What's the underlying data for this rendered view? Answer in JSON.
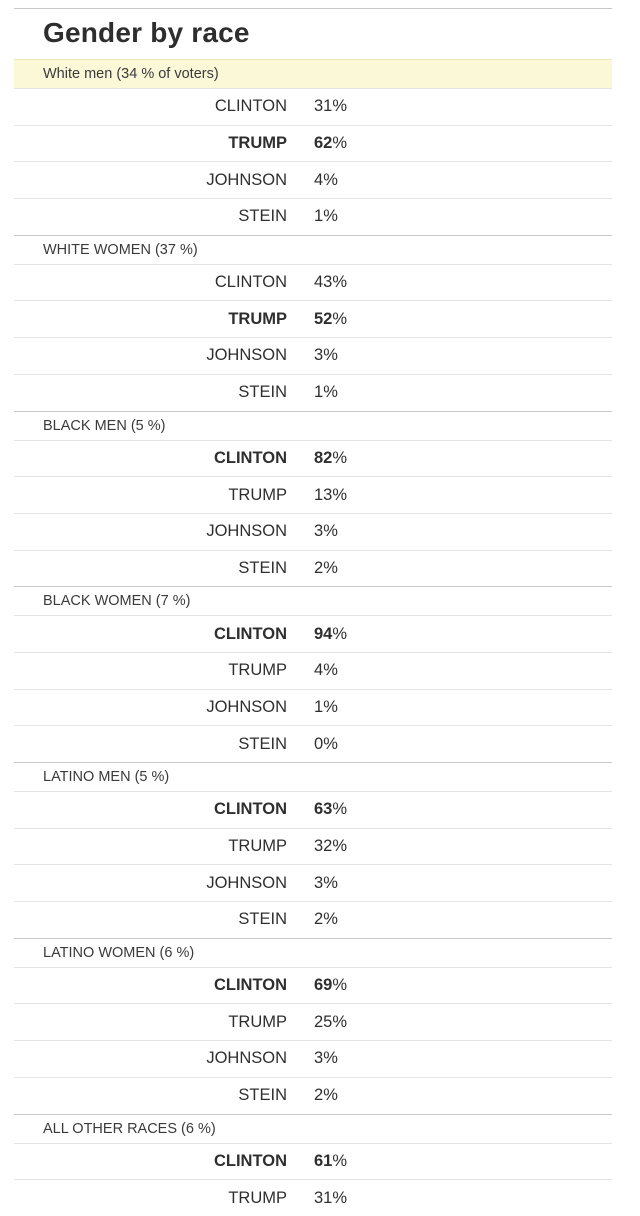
{
  "title": "Gender by race",
  "chart_data": {
    "type": "table",
    "title": "Gender by race",
    "groups": [
      {
        "label": "White men (34 % of voters)",
        "highlight": true,
        "leader": "TRUMP",
        "rows": [
          {
            "candidate": "CLINTON",
            "value": "31",
            "unit": "%"
          },
          {
            "candidate": "TRUMP",
            "value": "62",
            "unit": "%"
          },
          {
            "candidate": "JOHNSON",
            "value": "4",
            "unit": "%"
          },
          {
            "candidate": "STEIN",
            "value": "1",
            "unit": "%"
          }
        ]
      },
      {
        "label": "WHITE WOMEN (37 %)",
        "leader": "TRUMP",
        "rows": [
          {
            "candidate": "CLINTON",
            "value": "43",
            "unit": "%"
          },
          {
            "candidate": "TRUMP",
            "value": "52",
            "unit": "%"
          },
          {
            "candidate": "JOHNSON",
            "value": "3",
            "unit": "%"
          },
          {
            "candidate": "STEIN",
            "value": "1",
            "unit": "%"
          }
        ]
      },
      {
        "label": "BLACK MEN (5 %)",
        "leader": "CLINTON",
        "rows": [
          {
            "candidate": "CLINTON",
            "value": "82",
            "unit": "%"
          },
          {
            "candidate": "TRUMP",
            "value": "13",
            "unit": "%"
          },
          {
            "candidate": "JOHNSON",
            "value": "3",
            "unit": "%"
          },
          {
            "candidate": "STEIN",
            "value": "2",
            "unit": "%"
          }
        ]
      },
      {
        "label": "BLACK WOMEN (7 %)",
        "leader": "CLINTON",
        "rows": [
          {
            "candidate": "CLINTON",
            "value": "94",
            "unit": "%"
          },
          {
            "candidate": "TRUMP",
            "value": "4",
            "unit": "%"
          },
          {
            "candidate": "JOHNSON",
            "value": "1",
            "unit": "%"
          },
          {
            "candidate": "STEIN",
            "value": "0",
            "unit": "%"
          }
        ]
      },
      {
        "label": "LATINO MEN (5 %)",
        "leader": "CLINTON",
        "rows": [
          {
            "candidate": "CLINTON",
            "value": "63",
            "unit": "%"
          },
          {
            "candidate": "TRUMP",
            "value": "32",
            "unit": "%"
          },
          {
            "candidate": "JOHNSON",
            "value": "3",
            "unit": "%"
          },
          {
            "candidate": "STEIN",
            "value": "2",
            "unit": "%"
          }
        ]
      },
      {
        "label": "LATINO WOMEN (6 %)",
        "leader": "CLINTON",
        "rows": [
          {
            "candidate": "CLINTON",
            "value": "69",
            "unit": "%"
          },
          {
            "candidate": "TRUMP",
            "value": "25",
            "unit": "%"
          },
          {
            "candidate": "JOHNSON",
            "value": "3",
            "unit": "%"
          },
          {
            "candidate": "STEIN",
            "value": "2",
            "unit": "%"
          }
        ]
      },
      {
        "label": "ALL OTHER RACES (6 %)",
        "leader": "CLINTON",
        "rows": [
          {
            "candidate": "CLINTON",
            "value": "61",
            "unit": "%"
          },
          {
            "candidate": "TRUMP",
            "value": "31",
            "unit": "%"
          }
        ]
      }
    ]
  }
}
